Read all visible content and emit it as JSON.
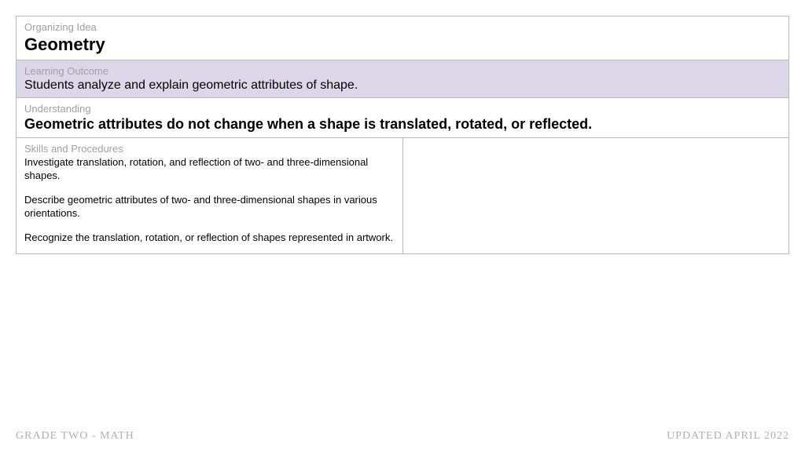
{
  "colors": {
    "border": "#b8b8b8",
    "label_text": "#a0a0a0",
    "body_text": "#000000",
    "outcome_bg": "#dcd6e8",
    "white_bg": "#ffffff",
    "footer_text": "#b0b0b0"
  },
  "organizing_idea": {
    "label": "Organizing Idea",
    "value": "Geometry"
  },
  "learning_outcome": {
    "label": "Learning Outcome",
    "value": "Students analyze and explain geometric attributes of shape."
  },
  "understanding": {
    "label": "Understanding",
    "value": "Geometric attributes do not change when a shape is translated, rotated, or reflected."
  },
  "skills": {
    "label": "Skills and Procedures",
    "items": [
      "Investigate translation, rotation, and reflection of two- and three-dimensional shapes.",
      "Describe geometric attributes of two- and three-dimensional shapes in various orientations.",
      "Recognize the translation, rotation, or reflection of shapes represented in artwork."
    ]
  },
  "footer": {
    "left": "GRADE TWO - MATH",
    "right": "UPDATED APRIL 2022"
  }
}
